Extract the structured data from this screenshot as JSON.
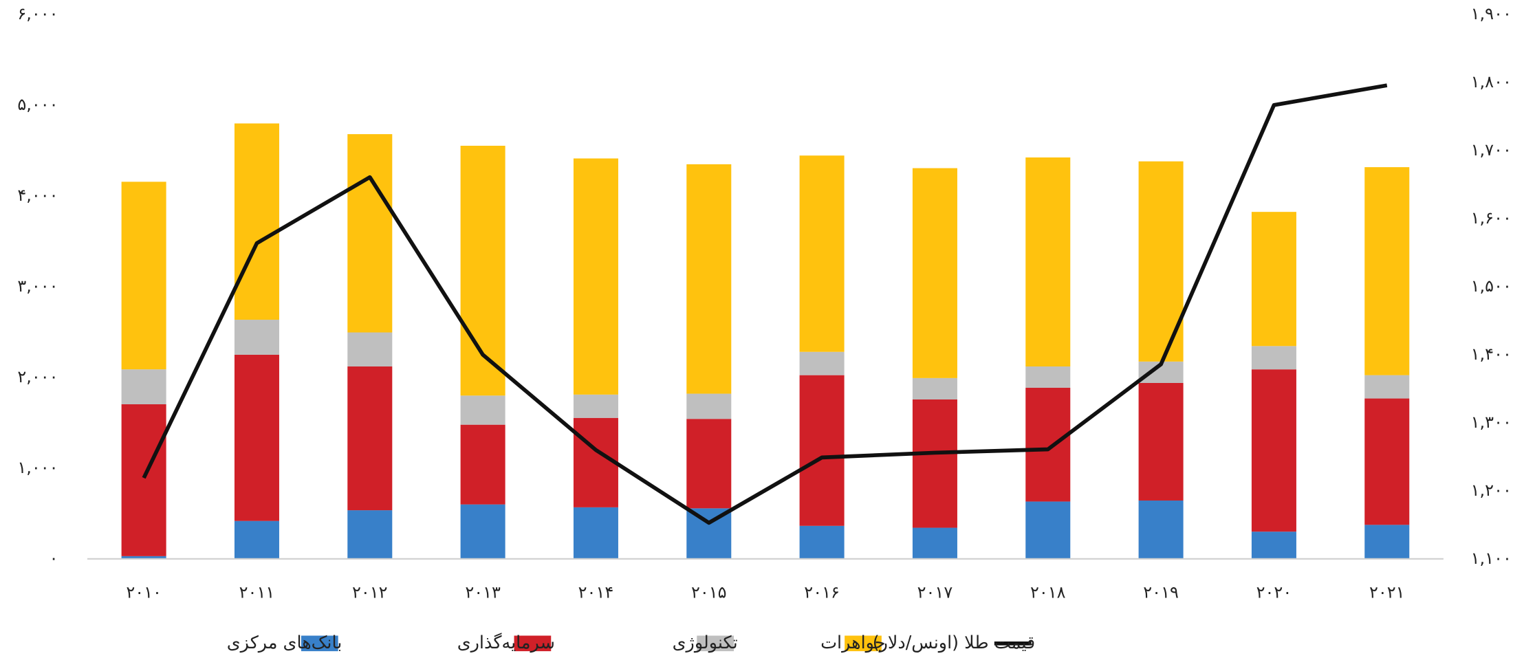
{
  "chart_data": {
    "type": "bar_line",
    "categories": [
      "۲۰۱۰",
      "۲۰۱۱",
      "۲۰۱۲",
      "۲۰۱۳",
      "۲۰۱۴",
      "۲۰۱۵",
      "۲۰۱۶",
      "۲۰۱۷",
      "۲۰۱۸",
      "۲۰۱۹",
      "۲۰۲۰",
      "۲۰۲۱"
    ],
    "series": [
      {
        "name": "بانک‌های مرکزی",
        "color": "#3880c9",
        "type": "bar",
        "values": [
          30,
          418,
          536,
          600,
          568,
          557,
          364,
          343,
          632,
          643,
          300,
          375
        ]
      },
      {
        "name": "سرمایه‌گذاری",
        "color": "#d02028",
        "type": "bar",
        "values": [
          1674,
          1832,
          1585,
          879,
          986,
          986,
          1661,
          1414,
          1254,
          1296,
          1789,
          1393
        ]
      },
      {
        "name": "تکنولوژی",
        "color": "#bfbfbf",
        "type": "bar",
        "values": [
          385,
          386,
          375,
          321,
          257,
          278,
          257,
          236,
          235,
          236,
          257,
          257
        ]
      },
      {
        "name": "جواهرات",
        "color": "#ffc20e",
        "type": "bar",
        "values": [
          2068,
          2164,
          2186,
          2754,
          2603,
          2529,
          2164,
          2314,
          2304,
          2207,
          1479,
          2293
        ]
      },
      {
        "name": "قیمت طلا (اونس/دلار)",
        "color": "#111111",
        "type": "line",
        "axis": "y2",
        "values": [
          1219,
          1564,
          1661,
          1400,
          1260,
          1153,
          1249,
          1256,
          1261,
          1386,
          1767,
          1796
        ]
      }
    ],
    "stacked": true,
    "ylim": [
      0,
      6000
    ],
    "yticks": [
      {
        "value": 0,
        "label": "۰"
      },
      {
        "value": 1000,
        "label": "۱,۰۰۰"
      },
      {
        "value": 2000,
        "label": "۲,۰۰۰"
      },
      {
        "value": 3000,
        "label": "۳,۰۰۰"
      },
      {
        "value": 4000,
        "label": "۴,۰۰۰"
      },
      {
        "value": 5000,
        "label": "۵,۰۰۰"
      },
      {
        "value": 6000,
        "label": "۶,۰۰۰"
      }
    ],
    "y2lim": [
      1100,
      1900
    ],
    "y2ticks": [
      {
        "value": 1100,
        "label": "۱,۱۰۰"
      },
      {
        "value": 1200,
        "label": "۱,۲۰۰"
      },
      {
        "value": 1300,
        "label": "۱,۳۰۰"
      },
      {
        "value": 1400,
        "label": "۱,۴۰۰"
      },
      {
        "value": 1500,
        "label": "۱,۵۰۰"
      },
      {
        "value": 1600,
        "label": "۱,۶۰۰"
      },
      {
        "value": 1700,
        "label": "۱,۷۰۰"
      },
      {
        "value": 1800,
        "label": "۱,۸۰۰"
      },
      {
        "value": 1900,
        "label": "۱,۹۰۰"
      }
    ],
    "grid": false,
    "legend": "bottom"
  }
}
